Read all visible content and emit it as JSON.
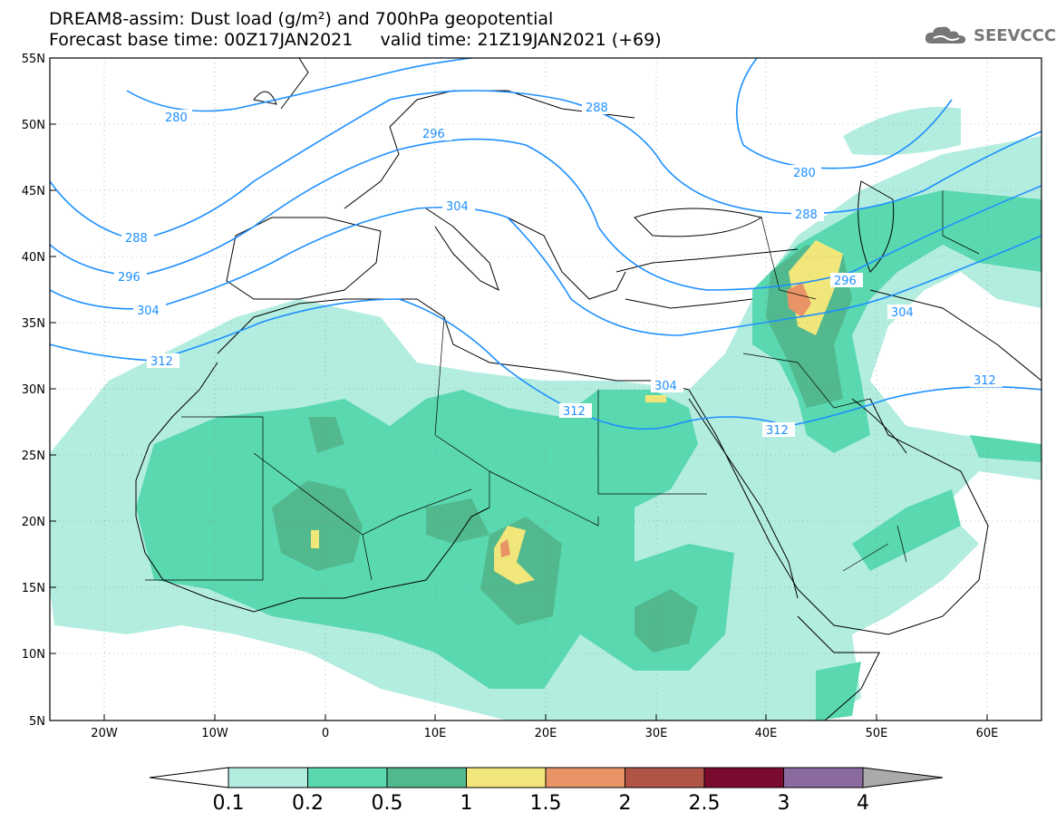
{
  "header": {
    "title_line1": "DREAM8-assim: Dust load (g/m²) and 700hPa geopotential",
    "title_line2": "Forecast base time: 00Z17JAN2021     valid time: 21Z19JAN2021 (+69)"
  },
  "logo": {
    "text": "SEEVCCC",
    "icon": "cloud-icon",
    "color": "#777777"
  },
  "map": {
    "lat_labels": [
      "55N",
      "50N",
      "45N",
      "40N",
      "35N",
      "30N",
      "25N",
      "20N",
      "15N",
      "10N",
      "5N"
    ],
    "lon_labels": [
      "20W",
      "10W",
      "0",
      "10E",
      "20E",
      "30E",
      "40E",
      "50E",
      "60E"
    ],
    "land_color": "#ffffff",
    "contour_color": "#1e90ff",
    "contours": [
      {
        "label": "280",
        "value": 280
      },
      {
        "label": "288",
        "value": 288
      },
      {
        "label": "296",
        "value": 296
      },
      {
        "label": "304",
        "value": 304
      },
      {
        "label": "312",
        "value": 312
      }
    ]
  },
  "colorbar": {
    "labels": [
      "0.1",
      "0.2",
      "0.5",
      "1",
      "1.5",
      "2",
      "2.5",
      "3",
      "4"
    ],
    "colors": [
      "#b3ede0",
      "#5ad8b0",
      "#52b88d",
      "#f0e67a",
      "#e89466",
      "#b05446",
      "#7a0a2e",
      "#8b6aa0",
      "#aaaaaa"
    ]
  }
}
